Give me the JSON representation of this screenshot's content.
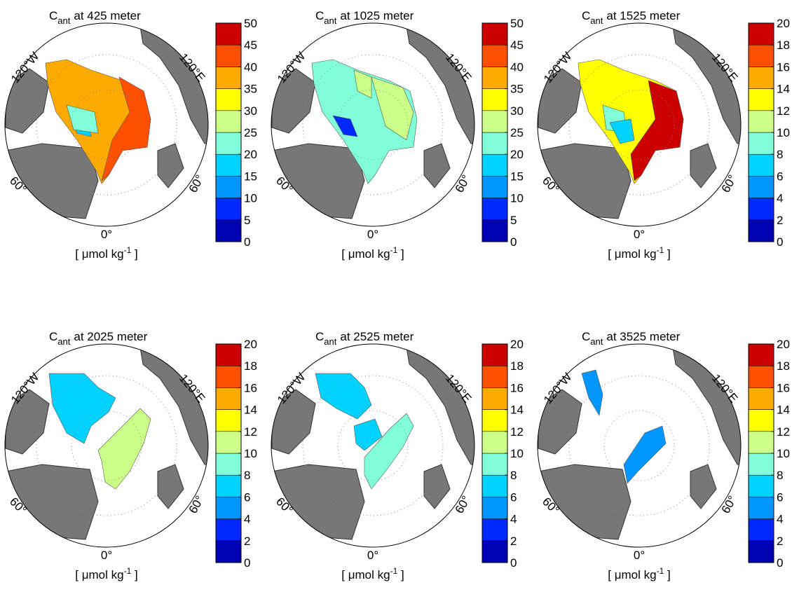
{
  "colorbar_colors": [
    "#0000b4",
    "#0028ff",
    "#0096ff",
    "#00d2ff",
    "#80ffd8",
    "#ccff88",
    "#ffff00",
    "#ffaa00",
    "#ff5000",
    "#cc0000"
  ],
  "panels": [
    {
      "title": {
        "symbol": "C",
        "subscript": "ant",
        "text": "at  425 meter"
      },
      "labels": {
        "west": "120°W",
        "east": "120°E",
        "sw": "60°",
        "se": "60°",
        "south": "0°"
      },
      "colorbar": {
        "clim": [
          0,
          50
        ],
        "ticks": [
          0,
          5,
          10,
          15,
          20,
          25,
          30,
          35,
          40,
          45,
          50
        ]
      },
      "unit": {
        "text": "[ μmol kg",
        "superscript": "-1",
        "close": " ]"
      }
    },
    {
      "title": {
        "symbol": "C",
        "subscript": "ant",
        "text": "at 1025 meter"
      },
      "labels": {
        "west": "120°W",
        "east": "120°E",
        "sw": "60°",
        "se": "60°",
        "south": "0°"
      },
      "colorbar": {
        "clim": [
          0,
          50
        ],
        "ticks": [
          0,
          5,
          10,
          15,
          20,
          25,
          30,
          35,
          40,
          45,
          50
        ]
      },
      "unit": {
        "text": "[ μmol kg",
        "superscript": "-1",
        "close": " ]"
      }
    },
    {
      "title": {
        "symbol": "C",
        "subscript": "ant",
        "text": "at 1525 meter"
      },
      "labels": {
        "west": "120°W",
        "east": "120°E",
        "sw": "60°",
        "se": "60°",
        "south": "0°"
      },
      "colorbar": {
        "clim": [
          0,
          20
        ],
        "ticks": [
          0,
          2,
          4,
          6,
          8,
          10,
          12,
          14,
          16,
          18,
          20
        ]
      },
      "unit": {
        "text": "[ μmol kg",
        "superscript": "-1",
        "close": " ]"
      }
    },
    {
      "title": {
        "symbol": "C",
        "subscript": "ant",
        "text": "at 2025 meter"
      },
      "labels": {
        "west": "120°W",
        "east": "120°E",
        "sw": "60°",
        "se": "60°",
        "south": "0°"
      },
      "colorbar": {
        "clim": [
          0,
          20
        ],
        "ticks": [
          0,
          2,
          4,
          6,
          8,
          10,
          12,
          14,
          16,
          18,
          20
        ]
      },
      "unit": {
        "text": "[ μmol kg",
        "superscript": "-1",
        "close": " ]"
      }
    },
    {
      "title": {
        "symbol": "C",
        "subscript": "ant",
        "text": "at 2525 meter"
      },
      "labels": {
        "west": "120°W",
        "east": "120°E",
        "sw": "60°",
        "se": "60°",
        "south": "0°"
      },
      "colorbar": {
        "clim": [
          0,
          20
        ],
        "ticks": [
          0,
          2,
          4,
          6,
          8,
          10,
          12,
          14,
          16,
          18,
          20
        ]
      },
      "unit": {
        "text": "[ μmol kg",
        "superscript": "-1",
        "close": " ]"
      }
    },
    {
      "title": {
        "symbol": "C",
        "subscript": "ant",
        "text": "at 3525 meter"
      },
      "labels": {
        "west": "120°W",
        "east": "120°E",
        "sw": "60°",
        "se": "60°",
        "south": "0°"
      },
      "colorbar": {
        "clim": [
          0,
          20
        ],
        "ticks": [
          0,
          2,
          4,
          6,
          8,
          10,
          12,
          14,
          16,
          18,
          20
        ]
      },
      "unit": {
        "text": "[ μmol kg",
        "superscript": "-1",
        "close": " ]"
      }
    }
  ]
}
